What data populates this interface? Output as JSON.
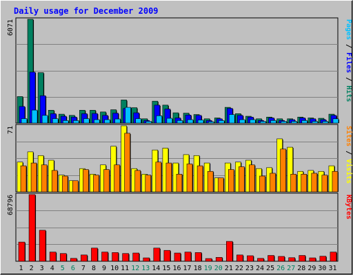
{
  "chart_data": {
    "type": "bar",
    "title": "Daily usage for December 2009",
    "colors": {
      "background": "#c0c0c0",
      "title": "#0000ff",
      "hits": "#008060",
      "files": "#0000ff",
      "pages": "#00c0ff",
      "visits": "#ffff00",
      "sites": "#ff8000",
      "kbytes": "#ff0000",
      "weekend_tick": "#008060",
      "weekday_tick": "#000000"
    },
    "categories": [
      "1",
      "2",
      "3",
      "4",
      "5",
      "6",
      "7",
      "8",
      "9",
      "10",
      "11",
      "12",
      "13",
      "14",
      "15",
      "16",
      "17",
      "18",
      "19",
      "20",
      "21",
      "22",
      "23",
      "24",
      "25",
      "26",
      "27",
      "28",
      "29",
      "30",
      "31"
    ],
    "weekend_days": [
      "5",
      "6",
      "12",
      "13",
      "19",
      "20",
      "26",
      "27"
    ],
    "panels": [
      {
        "id": "hits-files-pages",
        "ymax_label": "6071",
        "ylim": [
          0,
          6071
        ],
        "right_label": [
          {
            "text": "Pages",
            "color": "#00c0ff"
          },
          {
            "text": " / ",
            "color": "#000000"
          },
          {
            "text": "Files",
            "color": "#0000ff"
          },
          {
            "text": " / ",
            "color": "#000000"
          },
          {
            "text": "Hits",
            "color": "#008060"
          }
        ],
        "series": [
          {
            "name": "Hits",
            "color": "#008060",
            "values": [
              1550,
              6071,
              2950,
              750,
              520,
              450,
              750,
              750,
              650,
              780,
              1350,
              900,
              250,
              1280,
              1050,
              600,
              580,
              500,
              250,
              300,
              920,
              550,
              400,
              250,
              350,
              250,
              250,
              350,
              300,
              280,
              520
            ]
          },
          {
            "name": "Files",
            "color": "#0000ff",
            "values": [
              970,
              2980,
              1600,
              550,
              400,
              350,
              550,
              560,
              450,
              580,
              850,
              600,
              150,
              1050,
              820,
              300,
              470,
              450,
              150,
              250,
              860,
              450,
              350,
              150,
              300,
              150,
              200,
              300,
              250,
              200,
              450
            ]
          },
          {
            "name": "Pages",
            "color": "#00c0ff",
            "values": [
              260,
              760,
              450,
              260,
              150,
              150,
              260,
              200,
              200,
              240,
              920,
              260,
              100,
              430,
              280,
              150,
              200,
              180,
              80,
              150,
              500,
              200,
              200,
              100,
              150,
              100,
              100,
              150,
              100,
              100,
              250
            ]
          }
        ]
      },
      {
        "id": "visits-sites",
        "ymax_label": "71",
        "ylim": [
          0,
          71
        ],
        "right_label": [
          {
            "text": "Sites",
            "color": "#ff8000"
          },
          {
            "text": " / ",
            "color": "#000000"
          },
          {
            "text": "Visits",
            "color": "#ffff00"
          }
        ],
        "series": [
          {
            "name": "Visits",
            "color": "#ffff00",
            "values": [
              32,
              43,
              39,
              34,
              18,
              12,
              25,
              19,
              29,
              49,
              71,
              25,
              19,
              45,
              47,
              31,
              40,
              39,
              31,
              15,
              31,
              32,
              34,
              25,
              26,
              57,
              48,
              22,
              23,
              22,
              28
            ]
          },
          {
            "name": "Sites",
            "color": "#ff8000",
            "values": [
              28,
              31,
              29,
              23,
              17,
              12,
              24,
              18,
              24,
              29,
              63,
              23,
              18,
              32,
              31,
              19,
              30,
              28,
              22,
              15,
              24,
              27,
              29,
              17,
              20,
              46,
              19,
              19,
              20,
              18,
              22
            ]
          }
        ]
      },
      {
        "id": "kbytes",
        "ymax_label": "68796",
        "ylim": [
          0,
          68796
        ],
        "right_label": [
          {
            "text": "KBytes",
            "color": "#ff0000"
          }
        ],
        "series": [
          {
            "name": "KBytes",
            "color": "#ff0000",
            "values": [
              19800,
              68796,
              32000,
              9500,
              8000,
              3000,
              6500,
              13600,
              9500,
              9000,
              8000,
              8500,
              3500,
              13600,
              11200,
              8500,
              9500,
              9000,
              2800,
              4000,
              20500,
              6500,
              5700,
              3000,
              6000,
              5000,
              3700,
              6000,
              3500,
              5200,
              9500
            ]
          }
        ]
      }
    ]
  }
}
